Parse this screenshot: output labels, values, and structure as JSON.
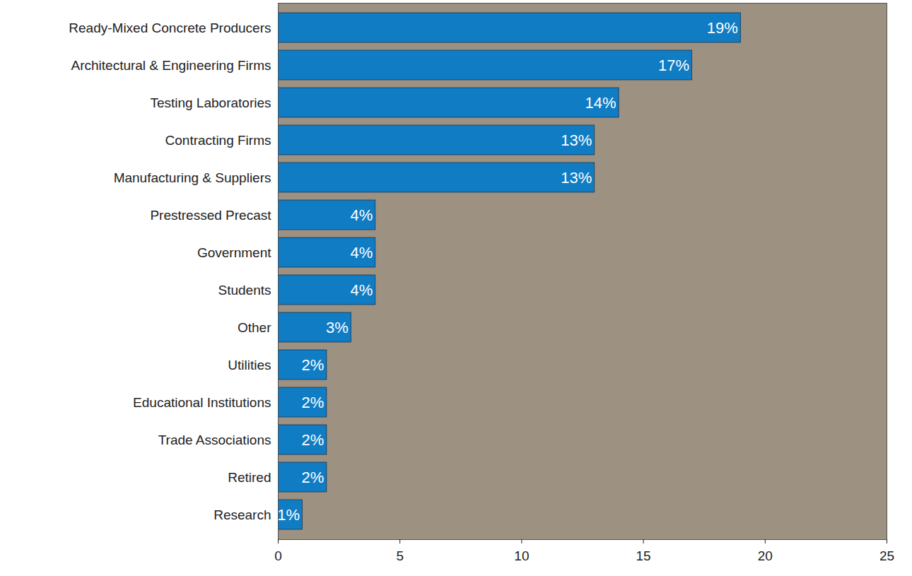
{
  "chart_data": {
    "type": "bar",
    "orientation": "horizontal",
    "categories": [
      "Ready-Mixed Concrete Producers",
      "Architectural & Engineering Firms",
      "Testing Laboratories",
      "Contracting Firms",
      "Manufacturing & Suppliers",
      "Prestressed Precast",
      "Government",
      "Students",
      "Other",
      "Utilities",
      "Educational Institutions",
      "Trade Associations",
      "Retired",
      "Research"
    ],
    "values": [
      19,
      17,
      14,
      13,
      13,
      4,
      4,
      4,
      3,
      2,
      2,
      2,
      2,
      1
    ],
    "value_labels": [
      "19%",
      "17%",
      "14%",
      "13%",
      "13%",
      "4%",
      "4%",
      "4%",
      "3%",
      "2%",
      "2%",
      "2%",
      "2%",
      "1%"
    ],
    "data_labels": true,
    "color": "#0f7cc4",
    "xlim": [
      0,
      25
    ],
    "xticks": [
      0,
      5,
      10,
      15,
      20,
      25
    ],
    "grid": false
  }
}
